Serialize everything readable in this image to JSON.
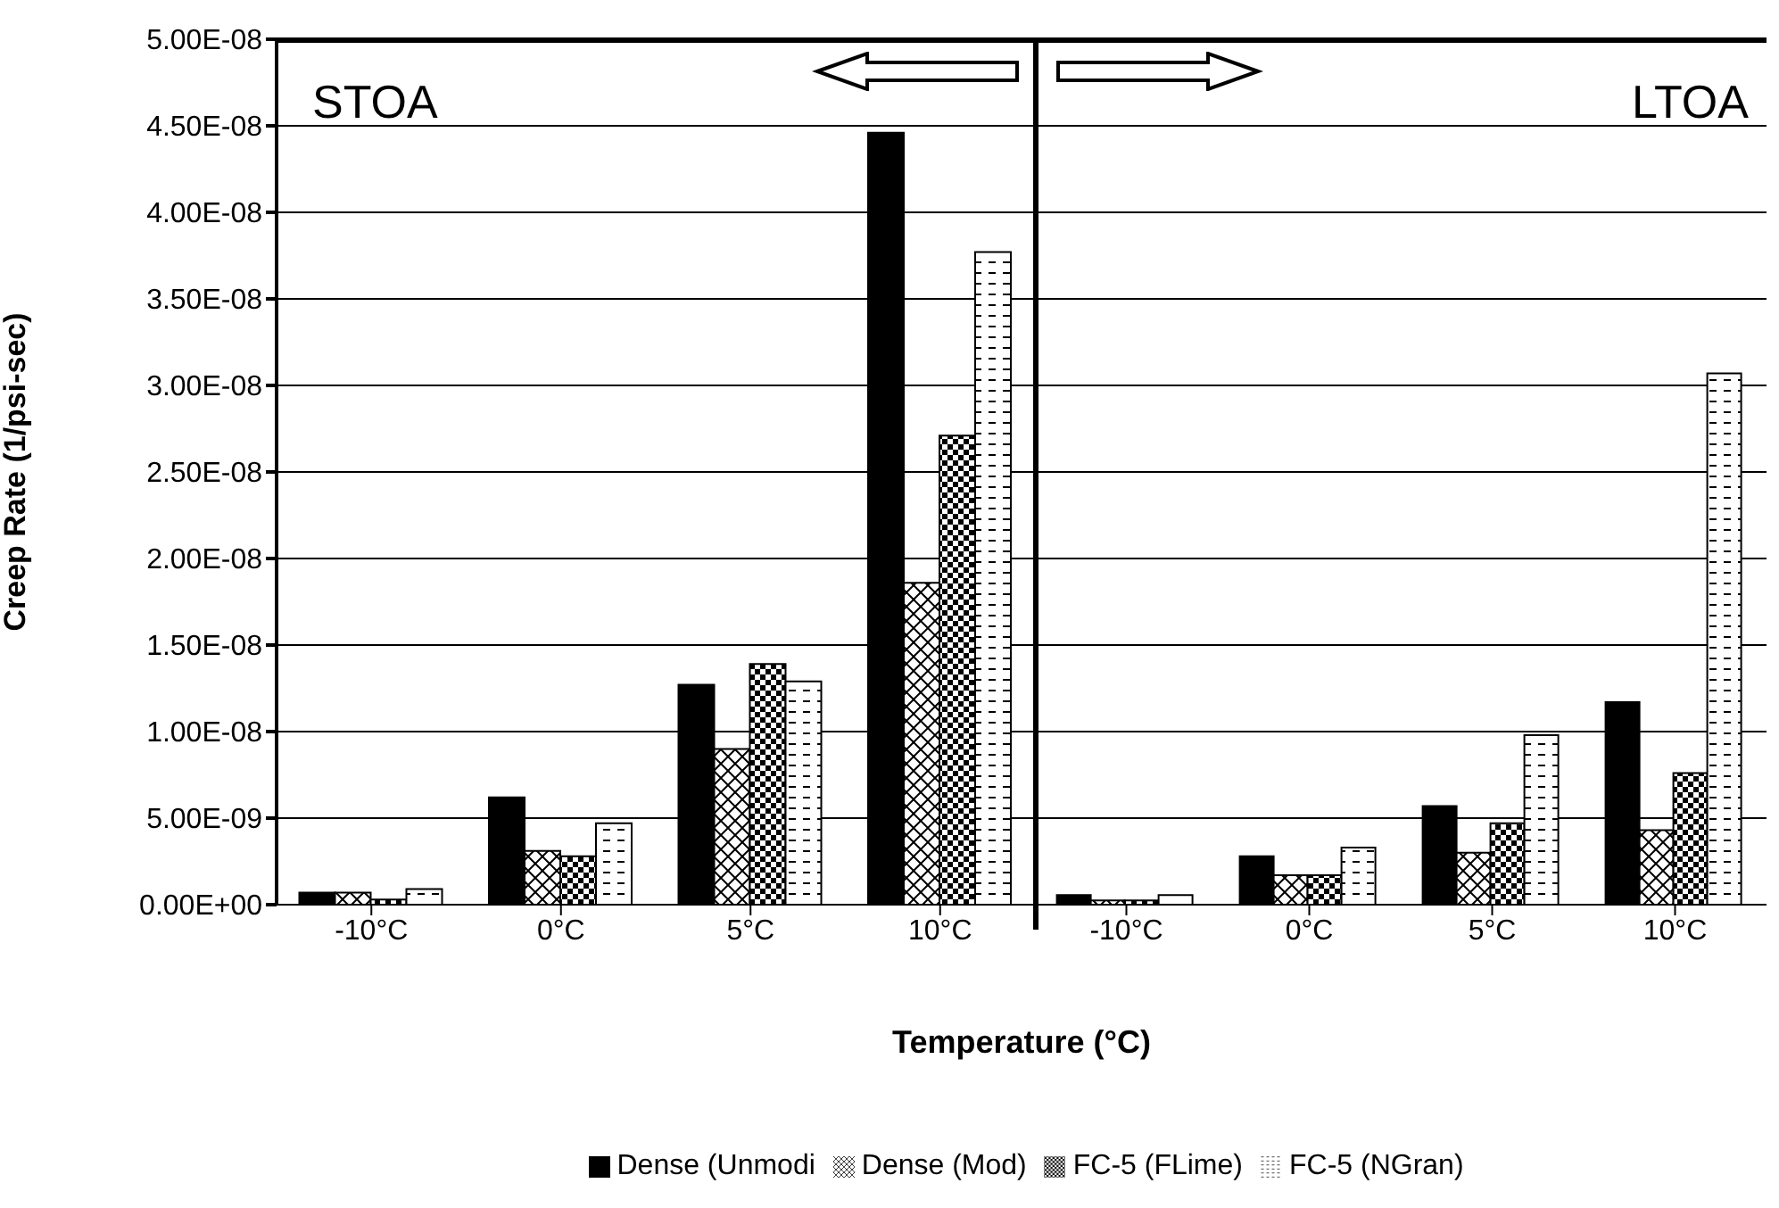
{
  "chart_data": [
    {
      "type": "bar",
      "ylabel": "Creep Rate (1/psi-sec)",
      "xlabel": "Temperature (°C)",
      "annotations": [
        "STOA"
      ],
      "legend": "bottom",
      "grid": "y",
      "categories": [
        "-10°C",
        "0°C",
        "5°C",
        "10°C"
      ],
      "ylim": [
        0,
        5e-08
      ],
      "yticks": [
        {
          "value": 0,
          "label": "0.00E+00"
        },
        {
          "value": 5e-09,
          "label": "5.00E-09"
        },
        {
          "value": 1e-08,
          "label": "1.00E-08"
        },
        {
          "value": 1.5e-08,
          "label": "1.50E-08"
        },
        {
          "value": 2e-08,
          "label": "2.00E-08"
        },
        {
          "value": 2.5e-08,
          "label": "2.50E-08"
        },
        {
          "value": 3e-08,
          "label": "3.00E-08"
        },
        {
          "value": 3.5e-08,
          "label": "3.50E-08"
        },
        {
          "value": 4e-08,
          "label": "4.00E-08"
        },
        {
          "value": 4.5e-08,
          "label": "4.50E-08"
        },
        {
          "value": 5e-08,
          "label": "5.00E-08"
        }
      ],
      "series": [
        {
          "name": "Dense (Unmodi",
          "color": "#000000",
          "values": [
            7e-10,
            6.2e-09,
            1.27e-08,
            4.46e-08
          ]
        },
        {
          "name": "Dense (Mod)",
          "color": "#000000",
          "values": [
            7e-10,
            3.1e-09,
            9e-09,
            1.86e-08
          ]
        },
        {
          "name": "FC-5 (FLime)",
          "color": "#000000",
          "values": [
            3e-10,
            2.8e-09,
            1.39e-08,
            2.71e-08
          ]
        },
        {
          "name": "FC-5 (NGran)",
          "color": "#000000",
          "values": [
            9e-10,
            4.7e-09,
            1.29e-08,
            3.77e-08
          ]
        }
      ]
    },
    {
      "type": "bar",
      "annotations": [
        "LTOA"
      ],
      "grid": "y",
      "tick_labels": "x",
      "categories": [
        "-10°C",
        "0°C",
        "5°C",
        "10°C"
      ],
      "ylim": [
        0,
        5e-08
      ],
      "yticks": [
        0,
        5e-09,
        1e-08,
        1.5e-08,
        2e-08,
        2.5e-08,
        3e-08,
        3.5e-08,
        4e-08,
        4.5e-08,
        5e-08
      ],
      "series": [
        {
          "color": "#000000",
          "values": [
            5.5e-10,
            2.8e-09,
            5.7e-09,
            1.17e-08
          ]
        },
        {
          "color": "#000000",
          "values": [
            2.5e-10,
            1.7e-09,
            3e-09,
            4.3e-09
          ]
        },
        {
          "color": "#000000",
          "values": [
            2.5e-10,
            1.7e-09,
            4.7e-09,
            7.6e-09
          ]
        },
        {
          "color": "#000000",
          "values": [
            5.5e-10,
            3.3e-09,
            9.8e-09,
            3.07e-08
          ]
        }
      ]
    }
  ]
}
